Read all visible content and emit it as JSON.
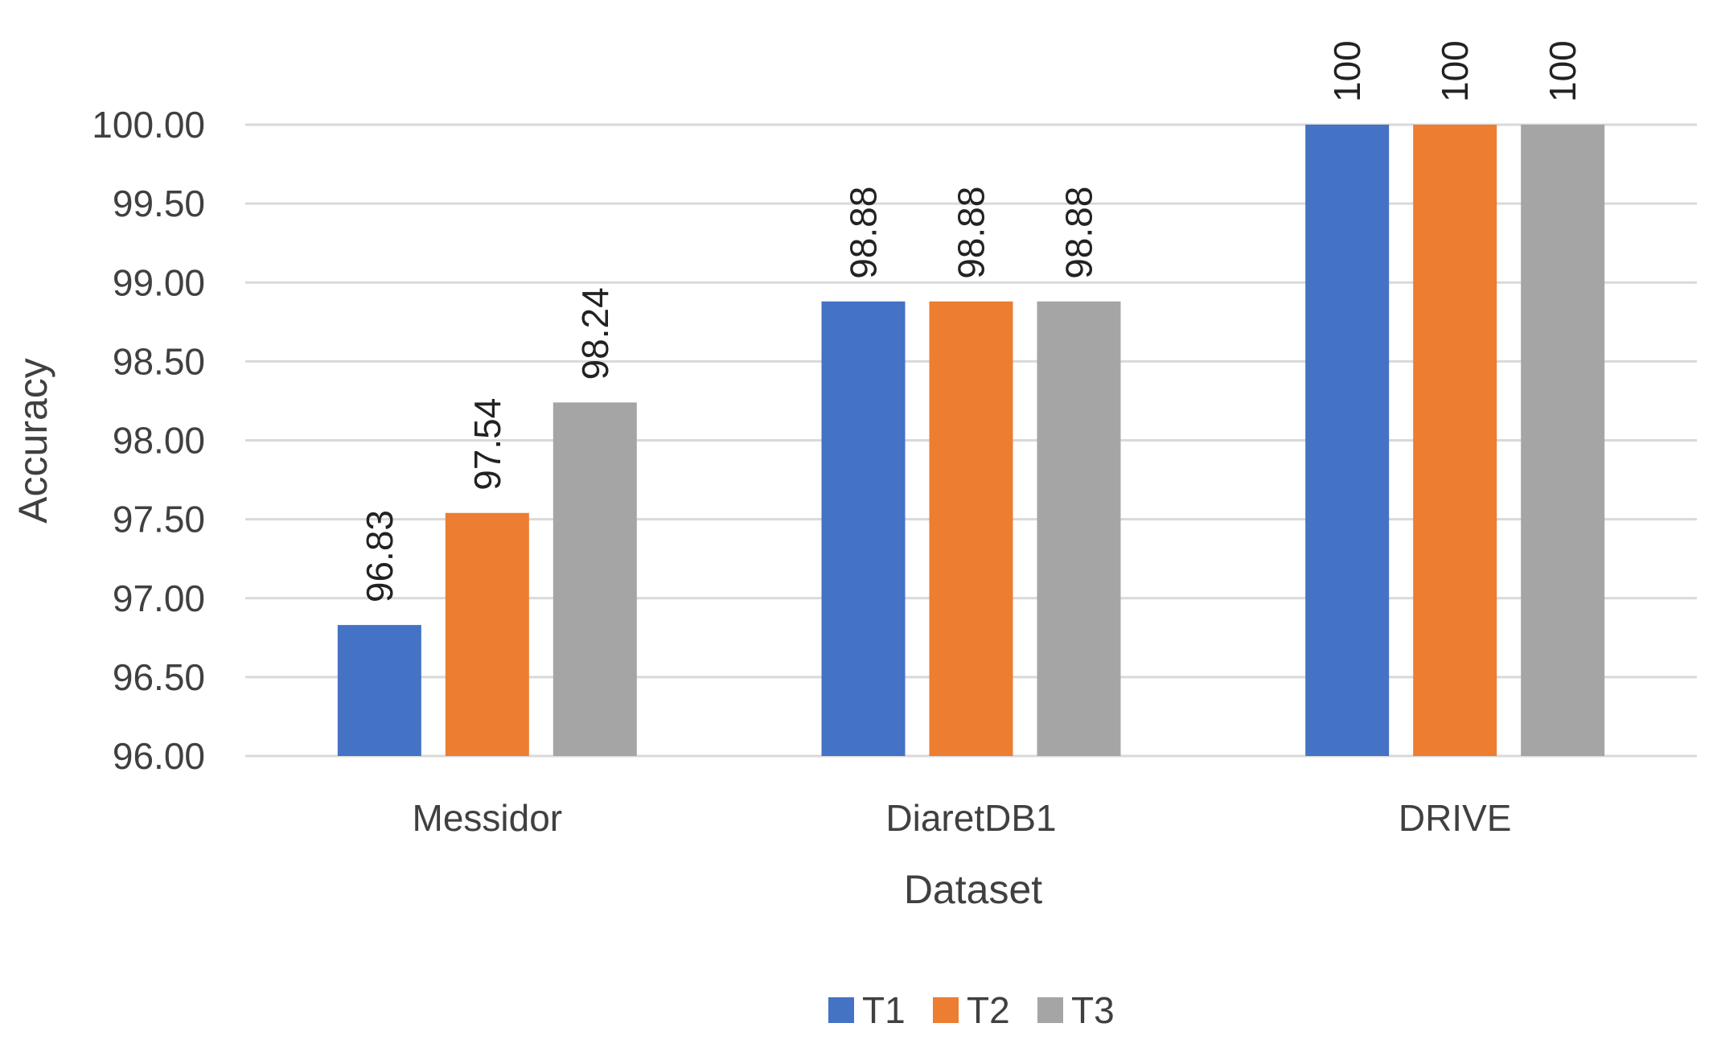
{
  "chart_data": {
    "type": "bar",
    "title": "",
    "xlabel": "Dataset",
    "ylabel": "Accuracy",
    "ylim": [
      96,
      100
    ],
    "ytick_step": 0.5,
    "ytick_decimals": 2,
    "grid": true,
    "legend_position": "bottom",
    "categories": [
      "Messidor",
      "DiaretDB1",
      "DRIVE"
    ],
    "series": [
      {
        "name": "T1",
        "color": "#4472C4",
        "values": [
          96.83,
          98.88,
          100
        ],
        "labels": [
          "96.83",
          "98.88",
          "100"
        ]
      },
      {
        "name": "T2",
        "color": "#ED7D31",
        "values": [
          97.54,
          98.88,
          100
        ],
        "labels": [
          "97.54",
          "98.88",
          "100"
        ]
      },
      {
        "name": "T3",
        "color": "#A5A5A5",
        "values": [
          98.24,
          98.88,
          100
        ],
        "labels": [
          "98.24",
          "98.88",
          "100"
        ]
      }
    ]
  }
}
